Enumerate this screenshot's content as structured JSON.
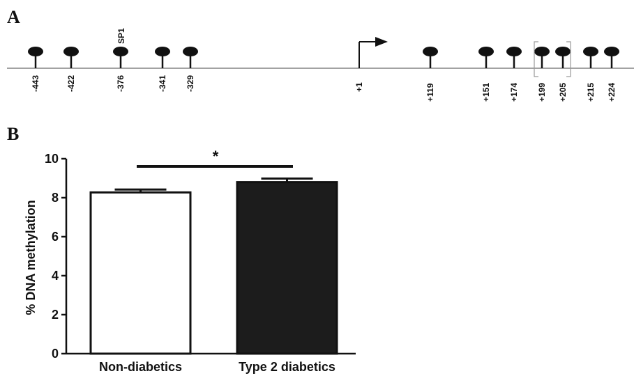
{
  "panel_a": {
    "letter": "A",
    "sp1_label": "SP1",
    "cpg_sites": [
      "-443",
      "-422",
      "-376",
      "-341",
      "-329",
      "+119",
      "+151",
      "+174",
      "+199",
      "+205",
      "+215",
      "+224"
    ],
    "tss_label": "+1",
    "boxed_sites": [
      "+199",
      "+205"
    ]
  },
  "panel_b": {
    "letter": "B",
    "significance": "*"
  },
  "chart_data": {
    "type": "bar",
    "categories": [
      "Non-diabetics",
      "Type 2 diabetics"
    ],
    "values": [
      8.27,
      8.8
    ],
    "errors": [
      0.15,
      0.18
    ],
    "bar_colors": [
      "#ffffff",
      "#1c1c1c"
    ],
    "ylabel": "% DNA methylation",
    "ylim": [
      0,
      10
    ],
    "yticks": [
      "0",
      "2",
      "4",
      "6",
      "8",
      "10"
    ],
    "grid": false,
    "legend": "none"
  }
}
